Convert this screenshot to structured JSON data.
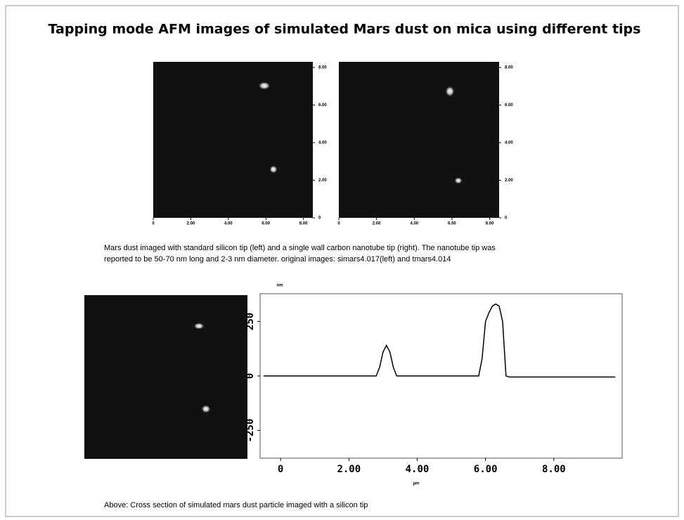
{
  "header": {
    "title": "Tapping mode AFM images of simulated Mars dust on mica using different tips"
  },
  "images": [
    {
      "xlim": [
        0,
        8.5
      ],
      "ylim": [
        0,
        8.3
      ],
      "xticks": [
        0,
        {
          "value": 2,
          "label": "2.00"
        },
        {
          "value": 4,
          "label": "4.00"
        },
        {
          "value": 6,
          "label": "6.00"
        },
        {
          "value": 8,
          "label": "8.00"
        }
      ],
      "yticks": [
        0,
        {
          "value": 2,
          "label": "2.00"
        },
        {
          "value": 4,
          "label": "4.00"
        },
        {
          "value": 6,
          "label": "6.00"
        },
        {
          "value": 8,
          "label": "8.00"
        }
      ]
    },
    {
      "xlim": [
        0,
        8.5
      ],
      "ylim": [
        0,
        8.3
      ],
      "xticks": [
        0,
        {
          "value": 2,
          "label": "2.00"
        },
        {
          "value": 4,
          "label": "4.00"
        },
        {
          "value": 6,
          "label": "6.00"
        },
        {
          "value": 8,
          "label": "8.00"
        }
      ],
      "yticks": [
        0,
        {
          "value": 2,
          "label": "2.00"
        },
        {
          "value": 4,
          "label": "4.00"
        },
        {
          "value": 6,
          "label": "6.00"
        },
        {
          "value": 8,
          "label": "8.00"
        }
      ]
    }
  ],
  "captions": [
    "Mars dust imaged with standard silicon tip (left) and a single wall carbon nanotube tip (right). The nanotube tip was",
    "reported to be 50-70 nm long and 2-3 nm diameter. original images: simars4.017(left) and tmars4.014",
    "Above: Cross section of simulated mars dust particle imaged with a silicon tip"
  ],
  "cross_section": {
    "type": "line",
    "y_label": "nm",
    "x_label": "µm",
    "x": [
      -0.5,
      2.8,
      2.9,
      3.0,
      3.1,
      3.2,
      3.3,
      3.4,
      5.8,
      5.9,
      6.0,
      6.1,
      6.2,
      6.3,
      6.4,
      6.5,
      6.6,
      6.7,
      9.8
    ],
    "values": [
      0,
      0,
      40,
      110,
      140,
      110,
      40,
      0,
      0,
      80,
      250,
      290,
      320,
      330,
      320,
      250,
      0,
      -5,
      -5
    ],
    "color": "#000000",
    "xlim": [
      -0.6,
      10
    ],
    "ylim": [
      -377,
      377
    ],
    "xticks": [
      0,
      {
        "value": 2,
        "label": "2.00"
      },
      {
        "value": 4,
        "label": "4.00"
      },
      {
        "value": 6,
        "label": "6.00"
      },
      {
        "value": 8,
        "label": "8.00"
      }
    ],
    "yticks": [
      -250,
      0,
      250
    ]
  }
}
